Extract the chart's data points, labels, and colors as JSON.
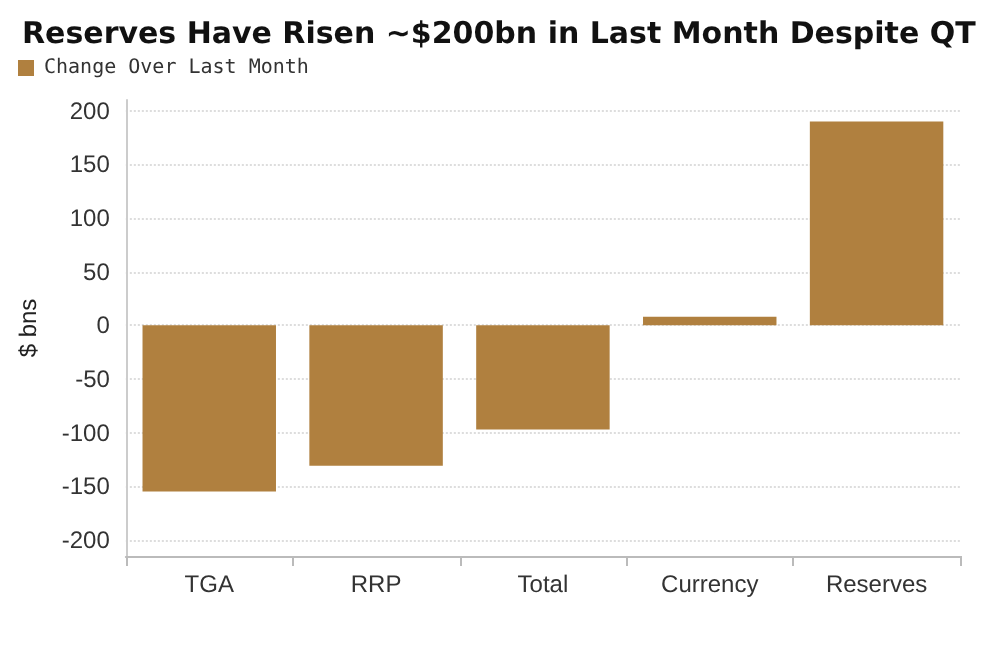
{
  "chart_data": {
    "type": "bar",
    "title": "Reserves Have Risen ~$200bn in Last Month Despite QT",
    "ylabel": "$ bns",
    "categories": [
      "TGA",
      "RRP",
      "Total",
      "Currency",
      "Reserves"
    ],
    "series": [
      {
        "name": "Change Over Last Month",
        "color": "#b0803f",
        "values": [
          -155,
          -131,
          -97,
          8,
          190
        ]
      }
    ],
    "ylim": [
      -215,
      210
    ],
    "yticks": [
      -200,
      -150,
      -100,
      -50,
      0,
      50,
      100,
      150,
      200
    ],
    "grid": "y",
    "legend": "top left"
  }
}
